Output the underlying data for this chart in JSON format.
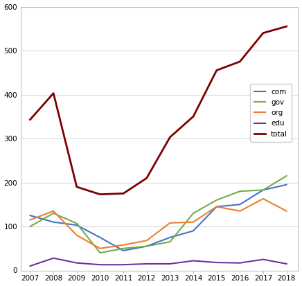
{
  "years": [
    2007,
    2008,
    2009,
    2010,
    2011,
    2012,
    2013,
    2014,
    2015,
    2016,
    2017,
    2018
  ],
  "com": [
    125,
    110,
    103,
    75,
    45,
    55,
    75,
    90,
    145,
    150,
    183,
    195
  ],
  "gov": [
    100,
    130,
    107,
    40,
    50,
    55,
    65,
    130,
    160,
    180,
    183,
    215
  ],
  "org": [
    115,
    135,
    80,
    50,
    58,
    68,
    108,
    110,
    145,
    135,
    163,
    135
  ],
  "edu": [
    10,
    28,
    17,
    13,
    13,
    15,
    15,
    22,
    18,
    17,
    25,
    15
  ],
  "total": [
    343,
    403,
    190,
    173,
    175,
    210,
    303,
    350,
    455,
    475,
    540,
    555
  ],
  "colors": {
    "com": "#4472c4",
    "gov": "#70ad47",
    "org": "#ed7d31",
    "edu": "#7030a0",
    "total": "#7b0000"
  },
  "ylim": [
    0,
    600
  ],
  "yticks": [
    0,
    100,
    200,
    300,
    400,
    500,
    600
  ],
  "plot_bg": "#ffffff",
  "fig_bg": "#ffffff",
  "grid_color": "#d9d9d9",
  "legend_labels": [
    "com",
    "gov",
    "org",
    "edu",
    "total"
  ]
}
